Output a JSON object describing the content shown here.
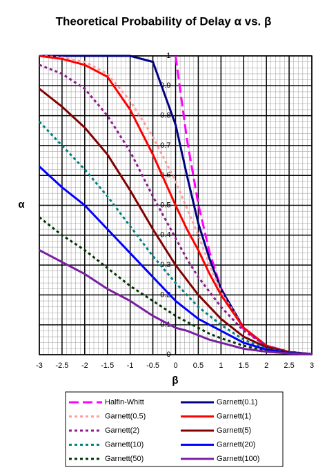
{
  "chart_data": {
    "type": "line",
    "title": "Theoretical Probability of Delay α vs. β",
    "x_label": "β",
    "y_label": "α",
    "x": [
      -3,
      -2.5,
      -2,
      -1.5,
      -1,
      -0.5,
      0,
      0.25,
      0.5,
      0.75,
      1,
      1.5,
      2,
      2.5,
      3
    ],
    "xlim": [
      -3,
      3
    ],
    "ylim": [
      0,
      1
    ],
    "xticks": [
      -3,
      -2.5,
      -2,
      -1.5,
      -1,
      -0.5,
      0,
      0.5,
      1,
      1.5,
      2,
      2.5,
      3
    ],
    "yticks": [
      0,
      0.1,
      0.2,
      0.3,
      0.4,
      0.5,
      0.6,
      0.7,
      0.8,
      0.9,
      1
    ],
    "grid": true,
    "minor_grid_divisions": 5,
    "legend": "bottom",
    "series": [
      {
        "name": "Halfin-Whitt",
        "color": "#ff00ff",
        "dash": "dashed",
        "values": [
          null,
          null,
          null,
          null,
          null,
          null,
          1,
          0.721,
          0.504,
          0.342,
          0.223,
          0.085,
          0.027,
          0.007,
          0.0015
        ]
      },
      {
        "name": "Garnett(0.1)",
        "color": "#000080",
        "dash": "solid",
        "values": [
          1,
          1,
          1,
          1,
          1,
          0.98,
          0.77,
          0.6,
          0.44,
          0.32,
          0.22,
          0.09,
          0.03,
          0.008,
          0.002
        ]
      },
      {
        "name": "Garnett(0.5)",
        "color": "#ff9c9c",
        "dash": "dotted",
        "values": [
          1,
          0.995,
          0.98,
          0.94,
          0.85,
          0.73,
          0.58,
          0.49,
          0.4,
          0.3,
          0.21,
          0.09,
          0.03,
          0.009,
          0.002
        ]
      },
      {
        "name": "Garnett(1)",
        "color": "#ff0000",
        "dash": "solid",
        "values": [
          1,
          0.99,
          0.97,
          0.93,
          0.82,
          0.67,
          0.5,
          0.42,
          0.35,
          0.27,
          0.2,
          0.09,
          0.03,
          0.009,
          0.002
        ]
      },
      {
        "name": "Garnett(2)",
        "color": "#8b1a8b",
        "dash": "dotted",
        "values": [
          0.97,
          0.94,
          0.89,
          0.8,
          0.68,
          0.53,
          0.39,
          0.32,
          0.26,
          0.21,
          0.16,
          0.08,
          0.03,
          0.01,
          0.002
        ]
      },
      {
        "name": "Garnett(5)",
        "color": "#800000",
        "dash": "solid",
        "values": [
          0.89,
          0.83,
          0.76,
          0.67,
          0.55,
          0.42,
          0.3,
          0.25,
          0.2,
          0.16,
          0.12,
          0.06,
          0.025,
          0.008,
          0.002
        ]
      },
      {
        "name": "Garnett(10)",
        "color": "#008080",
        "dash": "dotted",
        "values": [
          0.78,
          0.7,
          0.62,
          0.53,
          0.43,
          0.33,
          0.24,
          0.2,
          0.16,
          0.13,
          0.1,
          0.05,
          0.02,
          0.007,
          0.002
        ]
      },
      {
        "name": "Garnett(20)",
        "color": "#0000ff",
        "dash": "solid",
        "values": [
          0.63,
          0.56,
          0.5,
          0.42,
          0.34,
          0.26,
          0.18,
          0.15,
          0.12,
          0.1,
          0.08,
          0.04,
          0.017,
          0.006,
          0.002
        ]
      },
      {
        "name": "Garnett(50)",
        "color": "#003300",
        "dash": "dotted",
        "values": [
          0.46,
          0.4,
          0.35,
          0.29,
          0.23,
          0.18,
          0.13,
          0.11,
          0.09,
          0.07,
          0.055,
          0.03,
          0.012,
          0.005,
          0.001
        ]
      },
      {
        "name": "Garnett(100)",
        "color": "#7a1fa2",
        "dash": "solid",
        "values": [
          0.35,
          0.31,
          0.27,
          0.22,
          0.18,
          0.13,
          0.09,
          0.08,
          0.065,
          0.05,
          0.04,
          0.02,
          0.01,
          0.004,
          0.001
        ]
      }
    ]
  }
}
